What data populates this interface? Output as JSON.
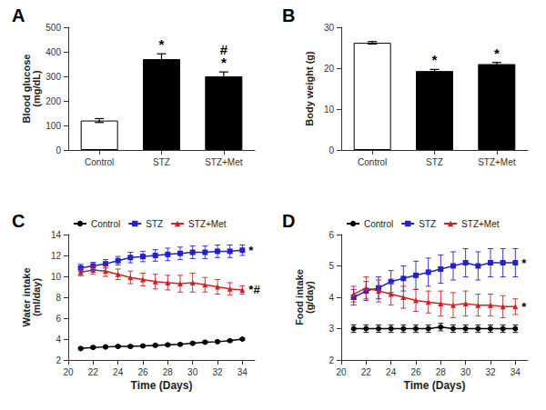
{
  "chart_data": [
    {
      "type": "bar",
      "title": "A",
      "categories": [
        "Control",
        "STZ",
        "STZ+Met"
      ],
      "values": [
        120,
        370,
        300
      ],
      "errors": [
        8,
        22,
        18
      ],
      "colors": [
        "white",
        "black",
        "black"
      ],
      "ylabel": "Blood glucose\n(mg/dL)",
      "ylim": [
        0,
        500
      ],
      "yticks": [
        0,
        100,
        200,
        300,
        400,
        500
      ],
      "grid": false,
      "annotations": [
        {
          "x": "STZ",
          "text": "*"
        },
        {
          "x": "STZ+Met",
          "text": "#"
        },
        {
          "x": "STZ+Met",
          "text": "*"
        }
      ]
    },
    {
      "type": "bar",
      "title": "B",
      "categories": [
        "Control",
        "STZ",
        "STZ+Met"
      ],
      "values": [
        26.2,
        19.3,
        21.0
      ],
      "errors": [
        0.3,
        0.4,
        0.4
      ],
      "colors": [
        "white",
        "black",
        "black"
      ],
      "ylabel": "Body weight (g)",
      "ylim": [
        0,
        30
      ],
      "yticks": [
        0,
        10,
        20,
        30
      ],
      "grid": false,
      "annotations": [
        {
          "x": "STZ",
          "text": "*"
        },
        {
          "x": "STZ+Met",
          "text": "*"
        }
      ]
    },
    {
      "type": "line",
      "title": "C",
      "x": [
        21,
        22,
        23,
        24,
        25,
        26,
        27,
        28,
        29,
        30,
        31,
        32,
        33,
        34
      ],
      "series": [
        {
          "name": "Control",
          "color": "#000000",
          "marker": "circle",
          "values": [
            3.1,
            3.2,
            3.25,
            3.3,
            3.3,
            3.35,
            3.4,
            3.45,
            3.5,
            3.6,
            3.7,
            3.75,
            3.85,
            4.0
          ],
          "errors": [
            0.1,
            0.1,
            0.1,
            0.1,
            0.1,
            0.1,
            0.1,
            0.1,
            0.1,
            0.1,
            0.1,
            0.1,
            0.1,
            0.1
          ]
        },
        {
          "name": "STZ",
          "color": "#2222CC",
          "marker": "square",
          "values": [
            10.8,
            11.0,
            11.2,
            11.5,
            11.8,
            11.9,
            12.0,
            12.1,
            12.2,
            12.3,
            12.3,
            12.4,
            12.4,
            12.5
          ],
          "errors": [
            0.35,
            0.35,
            0.4,
            0.4,
            0.5,
            0.5,
            0.55,
            0.6,
            0.6,
            0.6,
            0.6,
            0.6,
            0.6,
            0.5
          ]
        },
        {
          "name": "STZ+Met",
          "color": "#CC2222",
          "marker": "triangle",
          "values": [
            10.4,
            10.6,
            10.5,
            10.2,
            9.9,
            9.7,
            9.5,
            9.4,
            9.3,
            9.4,
            9.2,
            9.0,
            8.8,
            8.7
          ],
          "errors": [
            0.35,
            0.4,
            0.5,
            0.5,
            0.6,
            0.6,
            0.7,
            0.7,
            0.8,
            0.9,
            0.7,
            0.7,
            0.6,
            0.4
          ]
        }
      ],
      "xlabel": "Time (Days)",
      "ylabel": "Water intake\n(ml/day)",
      "xlim": [
        20,
        35
      ],
      "xticks": [
        20,
        22,
        24,
        26,
        28,
        30,
        32,
        34
      ],
      "ylim": [
        2,
        14
      ],
      "yticks": [
        2,
        4,
        6,
        8,
        10,
        12,
        14
      ],
      "grid": false,
      "legend": "upper left",
      "annotations": [
        {
          "series": "STZ",
          "text": "*"
        },
        {
          "series": "STZ+Met",
          "text": "*#"
        }
      ]
    },
    {
      "type": "line",
      "title": "D",
      "x": [
        21,
        22,
        23,
        24,
        25,
        26,
        27,
        28,
        29,
        30,
        31,
        32,
        33,
        34
      ],
      "series": [
        {
          "name": "Control",
          "color": "#000000",
          "marker": "circle",
          "values": [
            3.0,
            3.0,
            3.0,
            3.0,
            3.0,
            3.0,
            3.0,
            3.05,
            3.0,
            3.0,
            3.0,
            3.0,
            3.0,
            3.0
          ],
          "errors": [
            0.12,
            0.12,
            0.12,
            0.12,
            0.12,
            0.12,
            0.12,
            0.12,
            0.12,
            0.12,
            0.12,
            0.12,
            0.12,
            0.12
          ]
        },
        {
          "name": "STZ",
          "color": "#2222CC",
          "marker": "square",
          "values": [
            4.0,
            4.2,
            4.3,
            4.5,
            4.6,
            4.7,
            4.8,
            4.9,
            5.0,
            5.1,
            5.0,
            5.1,
            5.1,
            5.1
          ],
          "errors": [
            0.25,
            0.3,
            0.35,
            0.35,
            0.4,
            0.45,
            0.45,
            0.45,
            0.45,
            0.45,
            0.45,
            0.45,
            0.45,
            0.45
          ]
        },
        {
          "name": "STZ+Met",
          "color": "#CC2222",
          "marker": "triangle",
          "values": [
            4.1,
            4.3,
            4.2,
            4.1,
            4.0,
            3.9,
            3.85,
            3.8,
            3.75,
            3.8,
            3.75,
            3.75,
            3.7,
            3.7
          ],
          "errors": [
            0.25,
            0.35,
            0.35,
            0.35,
            0.35,
            0.35,
            0.35,
            0.4,
            0.4,
            0.4,
            0.35,
            0.35,
            0.35,
            0.25
          ]
        }
      ],
      "xlabel": "Time (Days)",
      "ylabel": "Food intake\n(g/day)",
      "xlim": [
        20,
        35
      ],
      "xticks": [
        20,
        22,
        24,
        26,
        28,
        30,
        32,
        34
      ],
      "ylim": [
        2,
        6
      ],
      "yticks": [
        2,
        3,
        4,
        5,
        6
      ],
      "grid": false,
      "legend": "upper left",
      "annotations": [
        {
          "series": "STZ",
          "text": "*"
        },
        {
          "series": "STZ+Met",
          "text": "*"
        }
      ]
    }
  ]
}
